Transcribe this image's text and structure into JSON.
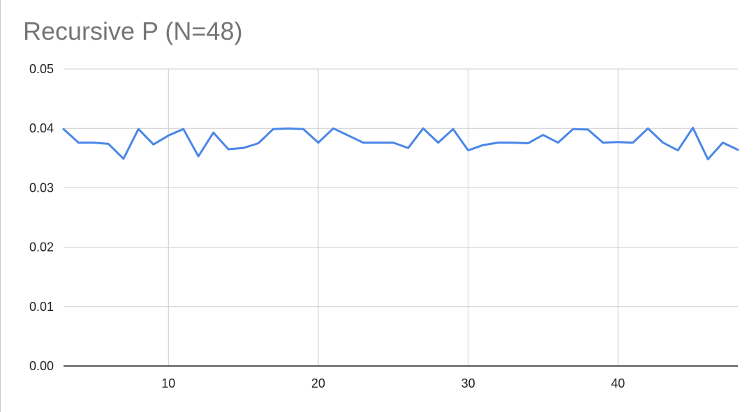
{
  "chart_data": {
    "type": "line",
    "title": "Recursive P (N=48)",
    "xlabel": "",
    "ylabel": "",
    "xlim": [
      3,
      48
    ],
    "ylim": [
      0,
      0.05
    ],
    "x_ticks": [
      "10",
      "20",
      "30",
      "40"
    ],
    "x_tick_values": [
      10,
      20,
      30,
      40
    ],
    "y_ticks": [
      "0.00",
      "0.01",
      "0.02",
      "0.03",
      "0.04",
      "0.05"
    ],
    "y_tick_values": [
      0,
      0.01,
      0.02,
      0.03,
      0.04,
      0.05
    ],
    "grid": true,
    "legend": "none",
    "colors": {
      "line": "#4a86e8",
      "grid": "#cccccc",
      "axis": "#222222"
    },
    "series": [
      {
        "x": [
          3,
          4,
          5,
          6,
          7,
          8,
          9,
          10,
          11,
          12,
          13,
          14,
          15,
          16,
          17,
          18,
          19,
          20,
          21,
          22,
          23,
          24,
          25,
          26,
          27,
          28,
          29,
          30,
          31,
          32,
          33,
          34,
          35,
          36,
          37,
          38,
          39,
          40,
          41,
          42,
          43,
          44,
          45,
          46,
          47,
          48
        ],
        "values": [
          0.0399,
          0.0376,
          0.0376,
          0.0374,
          0.0349,
          0.0399,
          0.0373,
          0.0388,
          0.0399,
          0.0353,
          0.0393,
          0.0365,
          0.0367,
          0.0375,
          0.0399,
          0.04,
          0.0399,
          0.0376,
          0.04,
          0.0388,
          0.0376,
          0.0376,
          0.0376,
          0.0367,
          0.04,
          0.0376,
          0.0399,
          0.0363,
          0.0372,
          0.0376,
          0.0376,
          0.0375,
          0.0389,
          0.0376,
          0.0399,
          0.0398,
          0.0376,
          0.0377,
          0.0376,
          0.04,
          0.0376,
          0.0363,
          0.0401,
          0.0348,
          0.0376,
          0.0364
        ]
      }
    ]
  }
}
